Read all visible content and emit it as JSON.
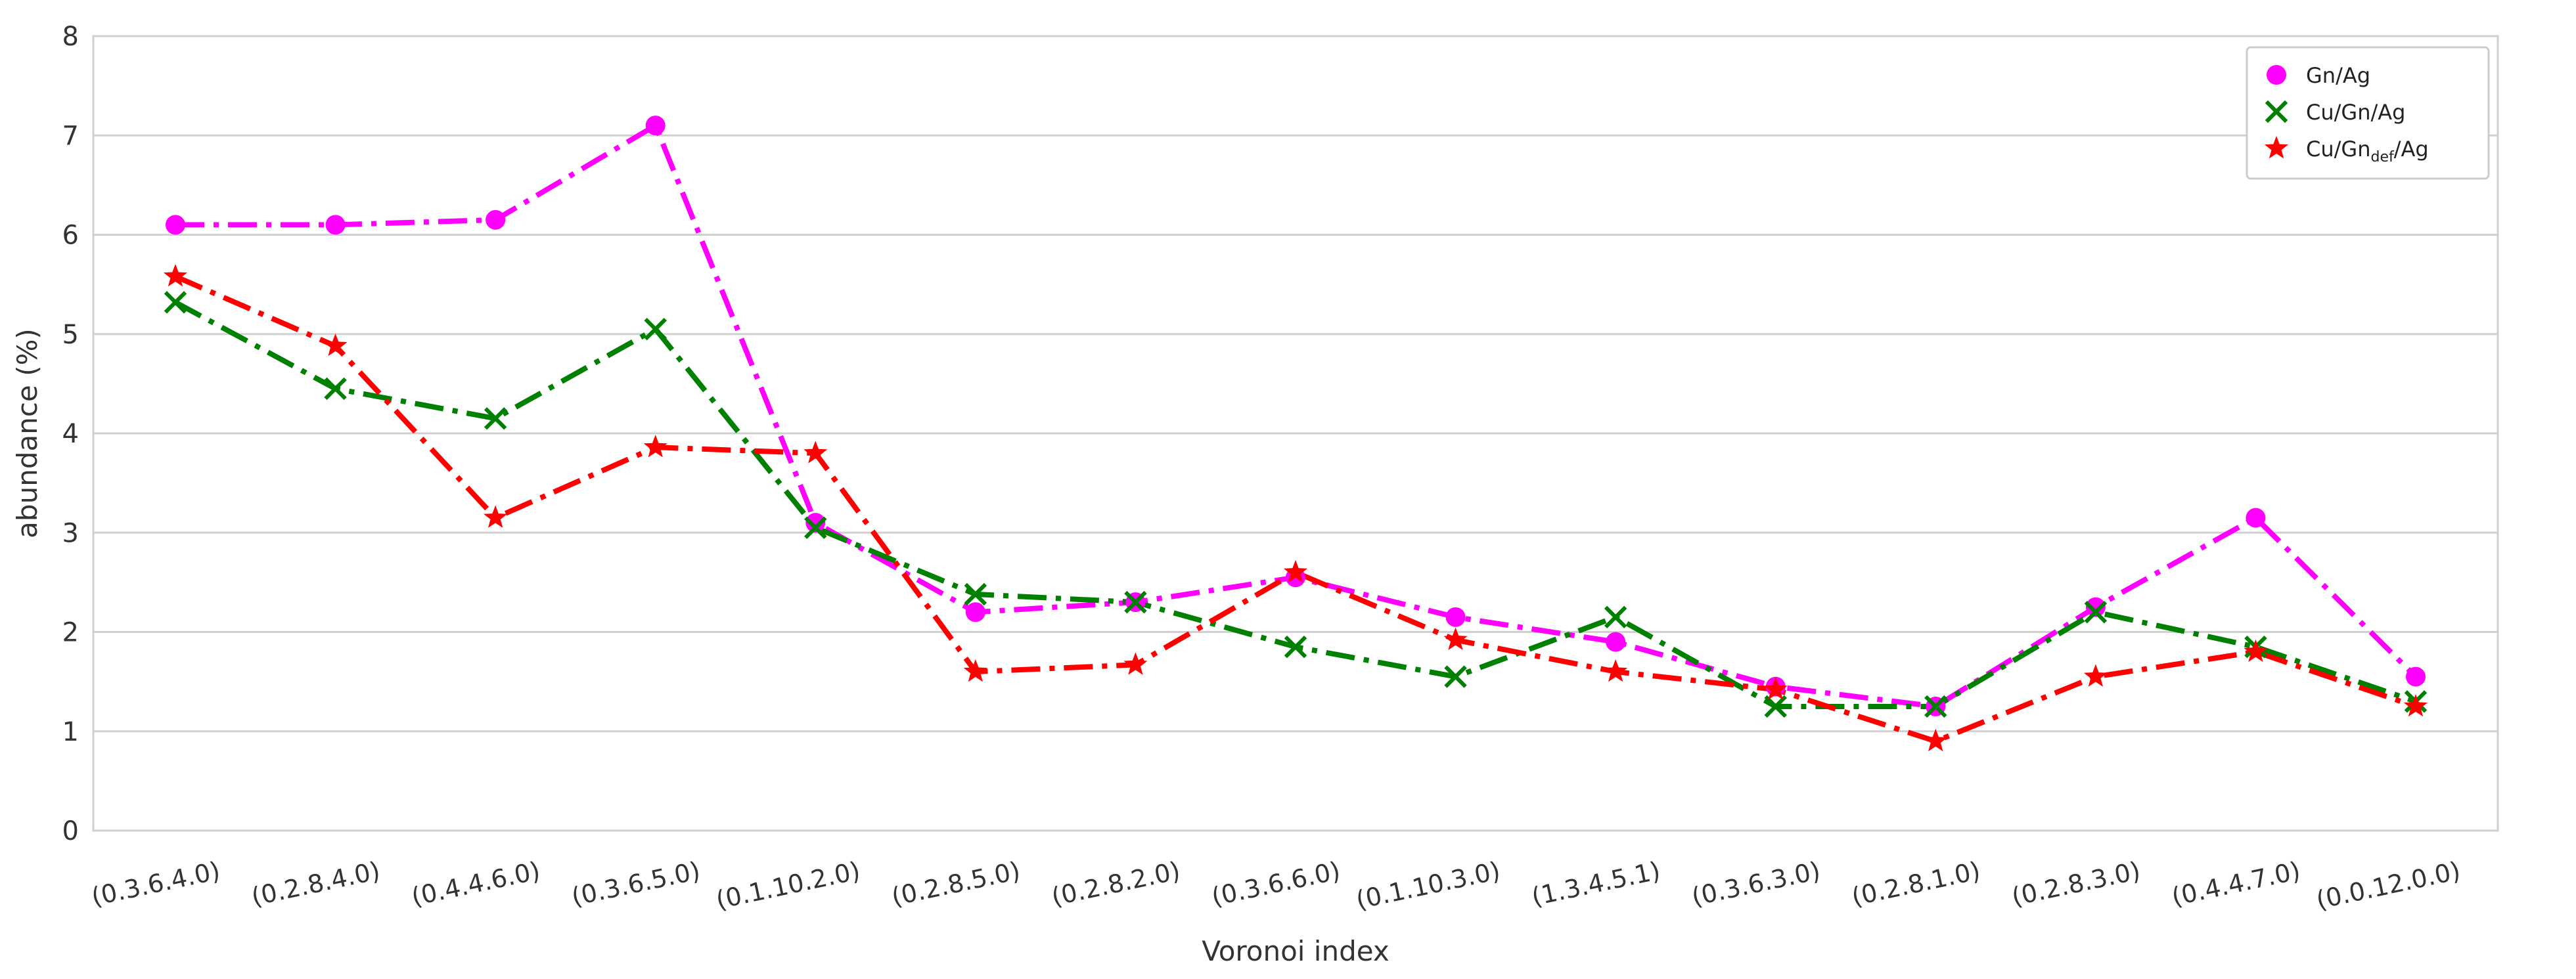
{
  "chart_data": {
    "type": "line",
    "xlabel": "Voronoi index",
    "ylabel": "abundance (%)",
    "ylim": [
      0,
      8
    ],
    "yticks": [
      0,
      1,
      2,
      3,
      4,
      5,
      6,
      7,
      8
    ],
    "grid": "horizontal",
    "legend_position": "top-right",
    "categories": [
      "(0.3.6.4.0)",
      "(0.2.8.4.0)",
      "(0.4.4.6.0)",
      "(0.3.6.5.0)",
      "(0.1.10.2.0)",
      "(0.2.8.5.0)",
      "(0.2.8.2.0)",
      "(0.3.6.6.0)",
      "(0.1.10.3.0)",
      "(1.3.4.5.1)",
      "(0.3.6.3.0)",
      "(0.2.8.1.0)",
      "(0.2.8.3.0)",
      "(0.4.4.7.0)",
      "(0.0.12.0.0)"
    ],
    "series": [
      {
        "name": "Gn/Ag",
        "label_main": "Gn/Ag",
        "label_sub": "",
        "label_tail": "",
        "color": "#ff00ff",
        "marker": "circle",
        "line_style": "dash-dot",
        "values": [
          6.1,
          6.1,
          6.15,
          7.1,
          3.1,
          2.2,
          2.3,
          2.55,
          2.15,
          1.9,
          1.45,
          1.25,
          2.25,
          3.15,
          1.55
        ]
      },
      {
        "name": "Cu/Gn/Ag",
        "label_main": "Cu/Gn/Ag",
        "label_sub": "",
        "label_tail": "",
        "color": "#008000",
        "marker": "x",
        "line_style": "dash-dot",
        "values": [
          5.32,
          4.45,
          4.15,
          5.05,
          3.05,
          2.38,
          2.3,
          1.85,
          1.55,
          2.15,
          1.25,
          1.25,
          2.2,
          1.85,
          1.3
        ]
      },
      {
        "name": "Cu/Gn_def/Ag",
        "label_main": "Cu/Gn",
        "label_sub": "def",
        "label_tail": "/Ag",
        "color": "#ff0000",
        "marker": "star",
        "line_style": "dash-dot",
        "values": [
          5.58,
          4.88,
          3.15,
          3.86,
          3.8,
          1.6,
          1.67,
          2.6,
          1.92,
          1.6,
          1.42,
          0.9,
          1.55,
          1.8,
          1.25
        ]
      }
    ]
  }
}
